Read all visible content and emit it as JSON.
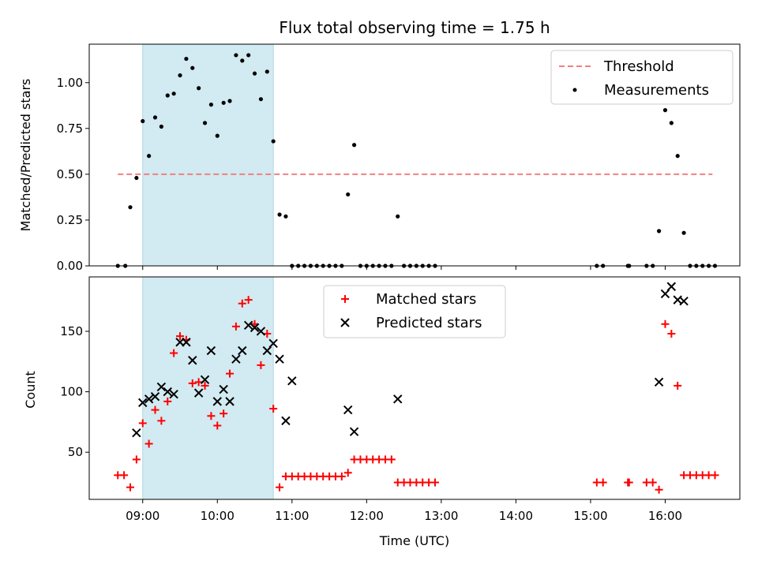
{
  "chart_data": [
    {
      "type": "scatter",
      "title": "Flux total observing time = 1.75 h",
      "xlabel": "",
      "ylabel": "Matched/Predicted stars",
      "ylim": [
        0,
        1.21
      ],
      "yticks": [
        0.0,
        0.25,
        0.5,
        0.75,
        1.0
      ],
      "ytick_labels": [
        "0.00",
        "0.25",
        "0.50",
        "0.75",
        "1.00"
      ],
      "xlim": [
        "08:17",
        "17:00"
      ],
      "shaded_interval": [
        "09:00",
        "10:45"
      ],
      "shade_color": "#add8e6",
      "legend_position": "upper right",
      "threshold": {
        "name": "Threshold",
        "value": 0.5,
        "x_range": [
          "08:40",
          "16:38"
        ],
        "color": "#f08080"
      },
      "series": [
        {
          "name": "Measurements",
          "color": "#000000",
          "marker": "dot",
          "points": [
            [
              "08:40",
              0.0
            ],
            [
              "08:46",
              0.0
            ],
            [
              "08:50",
              0.32
            ],
            [
              "08:55",
              0.48
            ],
            [
              "09:00",
              0.79
            ],
            [
              "09:05",
              0.6
            ],
            [
              "09:10",
              0.81
            ],
            [
              "09:15",
              0.76
            ],
            [
              "09:20",
              0.93
            ],
            [
              "09:25",
              0.94
            ],
            [
              "09:30",
              1.04
            ],
            [
              "09:35",
              1.13
            ],
            [
              "09:40",
              1.08
            ],
            [
              "09:45",
              0.97
            ],
            [
              "09:50",
              0.78
            ],
            [
              "09:55",
              0.88
            ],
            [
              "10:00",
              0.71
            ],
            [
              "10:05",
              0.89
            ],
            [
              "10:10",
              0.9
            ],
            [
              "10:15",
              1.15
            ],
            [
              "10:20",
              1.12
            ],
            [
              "10:25",
              1.15
            ],
            [
              "10:30",
              1.05
            ],
            [
              "10:35",
              0.91
            ],
            [
              "10:40",
              1.06
            ],
            [
              "10:45",
              0.68
            ],
            [
              "10:50",
              0.28
            ],
            [
              "10:55",
              0.27
            ],
            [
              "11:00",
              0.0
            ],
            [
              "11:05",
              0.0
            ],
            [
              "11:10",
              0.0
            ],
            [
              "11:15",
              0.0
            ],
            [
              "11:20",
              0.0
            ],
            [
              "11:25",
              0.0
            ],
            [
              "11:30",
              0.0
            ],
            [
              "11:35",
              0.0
            ],
            [
              "11:40",
              0.0
            ],
            [
              "11:45",
              0.39
            ],
            [
              "11:50",
              0.66
            ],
            [
              "11:55",
              0.0
            ],
            [
              "12:00",
              0.0
            ],
            [
              "12:05",
              0.0
            ],
            [
              "12:10",
              0.0
            ],
            [
              "12:15",
              0.0
            ],
            [
              "12:20",
              0.0
            ],
            [
              "12:25",
              0.27
            ],
            [
              "12:30",
              0.0
            ],
            [
              "12:35",
              0.0
            ],
            [
              "12:40",
              0.0
            ],
            [
              "12:45",
              0.0
            ],
            [
              "12:50",
              0.0
            ],
            [
              "12:55",
              0.0
            ],
            [
              "15:05",
              0.0
            ],
            [
              "15:10",
              0.0
            ],
            [
              "15:30",
              0.0
            ],
            [
              "15:31",
              0.0
            ],
            [
              "15:45",
              0.0
            ],
            [
              "15:50",
              0.0
            ],
            [
              "15:55",
              0.19
            ],
            [
              "16:00",
              0.85
            ],
            [
              "16:05",
              0.78
            ],
            [
              "16:10",
              0.6
            ],
            [
              "16:15",
              0.18
            ],
            [
              "16:20",
              0.0
            ],
            [
              "16:25",
              0.0
            ],
            [
              "16:30",
              0.0
            ],
            [
              "16:35",
              0.0
            ],
            [
              "16:40",
              0.0
            ]
          ]
        }
      ]
    },
    {
      "type": "scatter",
      "title": "",
      "xlabel": "Time (UTC)",
      "ylabel": "Count",
      "ylim": [
        11,
        195
      ],
      "yticks": [
        50,
        100,
        150
      ],
      "ytick_labels": [
        "50",
        "100",
        "150"
      ],
      "xlim": [
        "08:17",
        "17:00"
      ],
      "xticks": [
        "09:00",
        "10:00",
        "11:00",
        "12:00",
        "13:00",
        "14:00",
        "15:00",
        "16:00"
      ],
      "xtick_labels": [
        "09:00",
        "10:00",
        "11:00",
        "12:00",
        "13:00",
        "14:00",
        "15:00",
        "16:00"
      ],
      "shaded_interval": [
        "09:00",
        "10:45"
      ],
      "shade_color": "#add8e6",
      "legend_position": "upper center",
      "series": [
        {
          "name": "Matched stars",
          "color": "#ff0000",
          "marker": "plus",
          "points": [
            [
              "08:40",
              31
            ],
            [
              "08:45",
              31
            ],
            [
              "08:50",
              21
            ],
            [
              "08:55",
              44
            ],
            [
              "09:00",
              74
            ],
            [
              "09:05",
              57
            ],
            [
              "09:10",
              85
            ],
            [
              "09:15",
              76
            ],
            [
              "09:20",
              92
            ],
            [
              "09:25",
              132
            ],
            [
              "09:30",
              146
            ],
            [
              "09:35",
              143
            ],
            [
              "09:40",
              107
            ],
            [
              "09:45",
              108
            ],
            [
              "09:50",
              105
            ],
            [
              "09:55",
              80
            ],
            [
              "10:00",
              72
            ],
            [
              "10:05",
              82
            ],
            [
              "10:10",
              115
            ],
            [
              "10:15",
              154
            ],
            [
              "10:20",
              173
            ],
            [
              "10:25",
              176
            ],
            [
              "10:30",
              156
            ],
            [
              "10:35",
              122
            ],
            [
              "10:40",
              148
            ],
            [
              "10:45",
              86
            ],
            [
              "10:50",
              21
            ],
            [
              "10:55",
              30
            ],
            [
              "11:00",
              30
            ],
            [
              "11:05",
              30
            ],
            [
              "11:10",
              30
            ],
            [
              "11:15",
              30
            ],
            [
              "11:20",
              30
            ],
            [
              "11:25",
              30
            ],
            [
              "11:30",
              30
            ],
            [
              "11:35",
              30
            ],
            [
              "11:40",
              30
            ],
            [
              "11:45",
              33
            ],
            [
              "11:50",
              44
            ],
            [
              "11:55",
              44
            ],
            [
              "12:00",
              44
            ],
            [
              "12:05",
              44
            ],
            [
              "12:10",
              44
            ],
            [
              "12:15",
              44
            ],
            [
              "12:20",
              44
            ],
            [
              "12:25",
              25
            ],
            [
              "12:30",
              25
            ],
            [
              "12:35",
              25
            ],
            [
              "12:40",
              25
            ],
            [
              "12:45",
              25
            ],
            [
              "12:50",
              25
            ],
            [
              "12:55",
              25
            ],
            [
              "15:05",
              25
            ],
            [
              "15:10",
              25
            ],
            [
              "15:30",
              25
            ],
            [
              "15:31",
              25
            ],
            [
              "15:45",
              25
            ],
            [
              "15:50",
              25
            ],
            [
              "15:55",
              19
            ],
            [
              "16:00",
              156
            ],
            [
              "16:05",
              148
            ],
            [
              "16:10",
              105
            ],
            [
              "16:15",
              31
            ],
            [
              "16:20",
              31
            ],
            [
              "16:25",
              31
            ],
            [
              "16:30",
              31
            ],
            [
              "16:35",
              31
            ],
            [
              "16:40",
              31
            ]
          ]
        },
        {
          "name": "Predicted stars",
          "color": "#000000",
          "marker": "x",
          "points": [
            [
              "08:55",
              66
            ],
            [
              "09:00",
              91
            ],
            [
              "09:05",
              94
            ],
            [
              "09:10",
              96
            ],
            [
              "09:15",
              104
            ],
            [
              "09:20",
              100
            ],
            [
              "09:25",
              98
            ],
            [
              "09:30",
              141
            ],
            [
              "09:35",
              141
            ],
            [
              "09:40",
              126
            ],
            [
              "09:45",
              99
            ],
            [
              "09:50",
              110
            ],
            [
              "09:55",
              134
            ],
            [
              "10:00",
              92
            ],
            [
              "10:05",
              102
            ],
            [
              "10:10",
              92
            ],
            [
              "10:15",
              127
            ],
            [
              "10:20",
              134
            ],
            [
              "10:25",
              155
            ],
            [
              "10:30",
              153
            ],
            [
              "10:35",
              150
            ],
            [
              "10:40",
              134
            ],
            [
              "10:45",
              140
            ],
            [
              "10:50",
              127
            ],
            [
              "10:55",
              76
            ],
            [
              "11:00",
              109
            ],
            [
              "11:45",
              85
            ],
            [
              "11:50",
              67
            ],
            [
              "12:25",
              94
            ],
            [
              "15:55",
              108
            ],
            [
              "16:00",
              181
            ],
            [
              "16:05",
              187
            ],
            [
              "16:10",
              176
            ],
            [
              "16:15",
              175
            ]
          ]
        }
      ]
    }
  ]
}
